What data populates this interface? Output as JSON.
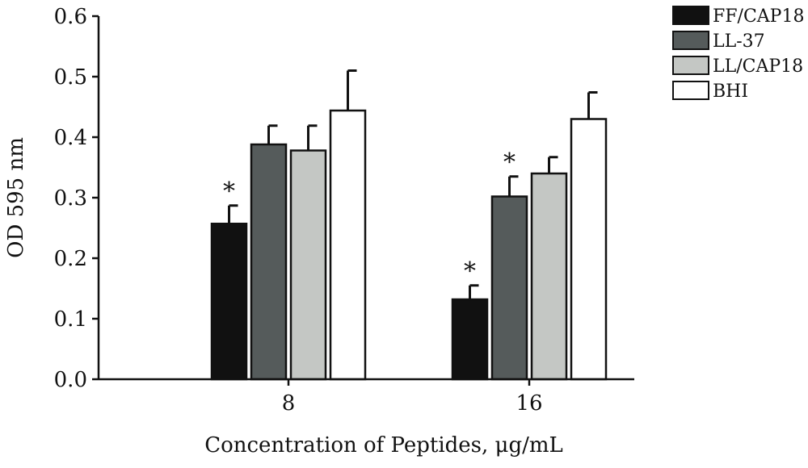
{
  "chart_data": {
    "type": "bar",
    "title": "",
    "xlabel": "Concentration of Peptides, μg/mL",
    "ylabel": "OD 595 nm",
    "ylim": [
      0,
      0.6
    ],
    "yticks": [
      "0.0",
      "0.1",
      "0.2",
      "0.3",
      "0.4",
      "0.5",
      "0.6"
    ],
    "grid": false,
    "legend_position": "top-right",
    "categories": [
      "8",
      "16"
    ],
    "series": [
      {
        "name": "FF/CAP18",
        "color": "#111111",
        "values": [
          0.257,
          0.132
        ],
        "errors": [
          0.03,
          0.023
        ],
        "significant": [
          true,
          true
        ]
      },
      {
        "name": "LL-37",
        "color": "#555b5b",
        "values": [
          0.388,
          0.302
        ],
        "errors": [
          0.031,
          0.033
        ],
        "significant": [
          false,
          true
        ]
      },
      {
        "name": "LL/CAP18",
        "color": "#c4c7c4",
        "values": [
          0.378,
          0.34
        ],
        "errors": [
          0.041,
          0.027
        ],
        "significant": [
          false,
          false
        ]
      },
      {
        "name": "BHI",
        "color": "#ffffff",
        "values": [
          0.444,
          0.43
        ],
        "errors": [
          0.066,
          0.044
        ],
        "significant": [
          false,
          false
        ]
      }
    ],
    "significance_marker": "*"
  }
}
